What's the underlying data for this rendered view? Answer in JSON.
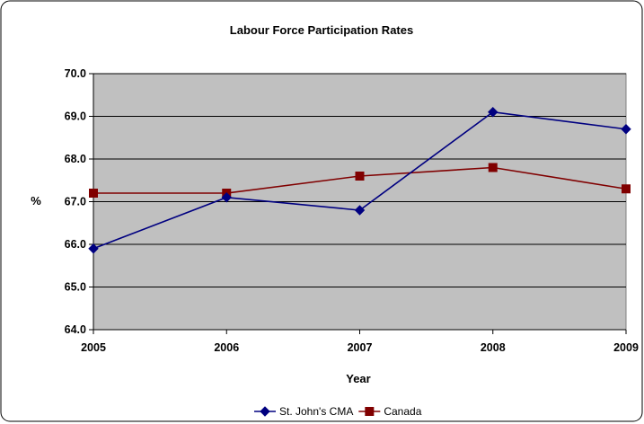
{
  "chart_data": {
    "type": "line",
    "title": "Labour Force Participation Rates",
    "xlabel": "Year",
    "ylabel": "%",
    "x": [
      "2005",
      "2006",
      "2007",
      "2008",
      "2009"
    ],
    "ylim": [
      64.0,
      70.0
    ],
    "yticks": [
      "64.0",
      "65.0",
      "66.0",
      "67.0",
      "68.0",
      "69.0",
      "70.0"
    ],
    "grid": true,
    "legend_position": "bottom",
    "series": [
      {
        "name": "St. John's CMA",
        "values": [
          65.9,
          67.1,
          66.8,
          69.1,
          68.7
        ],
        "color": "#000080",
        "marker": "diamond"
      },
      {
        "name": "Canada",
        "values": [
          67.2,
          67.2,
          67.6,
          67.8,
          67.3
        ],
        "color": "#800000",
        "marker": "square"
      }
    ],
    "plot_background": "#c0c0c0"
  }
}
